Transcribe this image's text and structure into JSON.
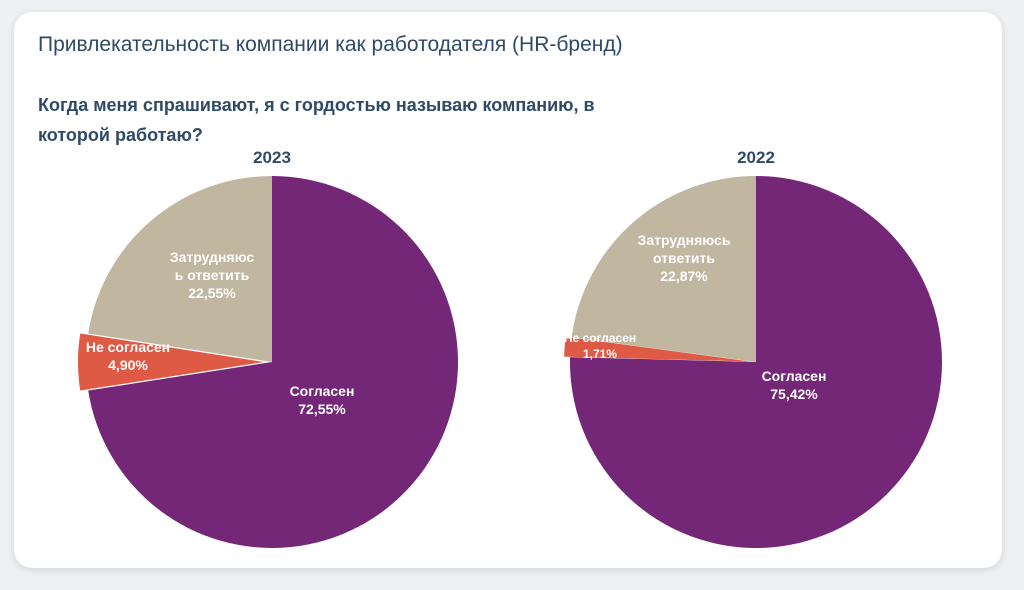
{
  "title": "Привлекательность компании как работодателя (HR-бренд)",
  "subtitle": "Когда меня спрашивают, я с гордостью называю компанию, в которой работаю?",
  "colors": {
    "agree": "#742776",
    "disagree": "#df5a44",
    "unsure": "#c1b7a0",
    "text": "#2f4a68"
  },
  "chart_data": [
    {
      "type": "pie",
      "title": "2023",
      "categories": [
        "Согласен",
        "Не согласен",
        "Затрудняюсь ответить"
      ],
      "values": [
        72.55,
        4.9,
        22.55
      ],
      "labels": [
        [
          "Согласен",
          "72,55%"
        ],
        [
          "Не согласен",
          "4,90%"
        ],
        [
          "Затрудняюс",
          "ь ответить",
          "22,55%"
        ]
      ]
    },
    {
      "type": "pie",
      "title": "2022",
      "categories": [
        "Согласен",
        "Не согласен",
        "Затрудняюсь ответить"
      ],
      "values": [
        75.42,
        1.71,
        22.87
      ],
      "labels": [
        [
          "Согласен",
          "75,42%"
        ],
        [
          "Не согласен",
          "1,71%"
        ],
        [
          "Затрудняюсь",
          "ответить",
          "22,87%"
        ]
      ]
    }
  ]
}
